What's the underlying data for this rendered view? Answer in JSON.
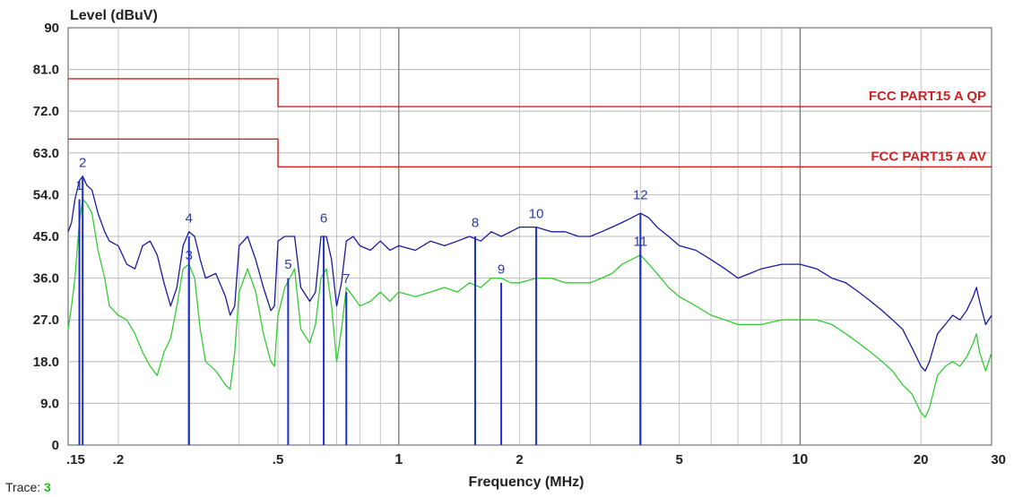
{
  "chart_data": {
    "type": "line",
    "title": "",
    "ylabel": "Level (dBuV)",
    "xlabel": "Frequency (MHz)",
    "x_scale": "log",
    "xlim": [
      0.15,
      30
    ],
    "ylim": [
      0,
      90
    ],
    "grid": true,
    "y_ticks": [
      {
        "value": 0,
        "label": "0"
      },
      {
        "value": 9,
        "label": "9.0"
      },
      {
        "value": 18,
        "label": "18.0"
      },
      {
        "value": 27,
        "label": "27.0"
      },
      {
        "value": 36,
        "label": "36.0"
      },
      {
        "value": 45,
        "label": "45.0"
      },
      {
        "value": 54,
        "label": "54.0"
      },
      {
        "value": 63,
        "label": "63.0"
      },
      {
        "value": 72,
        "label": "72.0"
      },
      {
        "value": 81,
        "label": "81.0"
      },
      {
        "value": 90,
        "label": "90"
      }
    ],
    "x_ticks": [
      {
        "value": 0.15,
        "label": ".15",
        "major": false
      },
      {
        "value": 0.2,
        "label": ".2",
        "major": false
      },
      {
        "value": 0.5,
        "label": ".5",
        "major": false
      },
      {
        "value": 1,
        "label": "1",
        "major": true
      },
      {
        "value": 2,
        "label": "2",
        "major": false
      },
      {
        "value": 5,
        "label": "5",
        "major": false
      },
      {
        "value": 10,
        "label": "10",
        "major": true
      },
      {
        "value": 20,
        "label": "20",
        "major": false
      },
      {
        "value": 30,
        "label": "30",
        "major": false
      }
    ],
    "limits": [
      {
        "name": "FCC PART15 A QP",
        "color": "#cc2222",
        "segments": [
          [
            0.15,
            79
          ],
          [
            0.5,
            79
          ],
          [
            0.5,
            73
          ],
          [
            30,
            73
          ]
        ]
      },
      {
        "name": "FCC PART15 A AV",
        "color": "#cc2222",
        "segments": [
          [
            0.15,
            66
          ],
          [
            0.5,
            66
          ],
          [
            0.5,
            60
          ],
          [
            30,
            60
          ]
        ]
      }
    ],
    "series": [
      {
        "color": "#1a1a9e",
        "points": [
          [
            0.15,
            46
          ],
          [
            0.153,
            48
          ],
          [
            0.156,
            53
          ],
          [
            0.16,
            57
          ],
          [
            0.163,
            58
          ],
          [
            0.167,
            56
          ],
          [
            0.172,
            55
          ],
          [
            0.178,
            50
          ],
          [
            0.185,
            46
          ],
          [
            0.19,
            44
          ],
          [
            0.2,
            43
          ],
          [
            0.21,
            39
          ],
          [
            0.22,
            38
          ],
          [
            0.23,
            43
          ],
          [
            0.24,
            44
          ],
          [
            0.25,
            41
          ],
          [
            0.26,
            35
          ],
          [
            0.27,
            30
          ],
          [
            0.28,
            34
          ],
          [
            0.29,
            43
          ],
          [
            0.3,
            46
          ],
          [
            0.31,
            45
          ],
          [
            0.32,
            40
          ],
          [
            0.33,
            36
          ],
          [
            0.35,
            37
          ],
          [
            0.37,
            32
          ],
          [
            0.38,
            28
          ],
          [
            0.39,
            30
          ],
          [
            0.4,
            43
          ],
          [
            0.42,
            45
          ],
          [
            0.44,
            40
          ],
          [
            0.46,
            34
          ],
          [
            0.48,
            29
          ],
          [
            0.49,
            30
          ],
          [
            0.5,
            44
          ],
          [
            0.52,
            45
          ],
          [
            0.55,
            45
          ],
          [
            0.57,
            34
          ],
          [
            0.6,
            31
          ],
          [
            0.62,
            33
          ],
          [
            0.64,
            45
          ],
          [
            0.66,
            45
          ],
          [
            0.68,
            40
          ],
          [
            0.7,
            30
          ],
          [
            0.72,
            35
          ],
          [
            0.74,
            44
          ],
          [
            0.77,
            45
          ],
          [
            0.8,
            43
          ],
          [
            0.85,
            42
          ],
          [
            0.9,
            44
          ],
          [
            0.95,
            42
          ],
          [
            1.0,
            43
          ],
          [
            1.1,
            42
          ],
          [
            1.2,
            44
          ],
          [
            1.3,
            43
          ],
          [
            1.4,
            44
          ],
          [
            1.5,
            45
          ],
          [
            1.6,
            44
          ],
          [
            1.7,
            46
          ],
          [
            1.8,
            45
          ],
          [
            1.9,
            46
          ],
          [
            2.0,
            47
          ],
          [
            2.2,
            47
          ],
          [
            2.4,
            46
          ],
          [
            2.6,
            46
          ],
          [
            2.8,
            45
          ],
          [
            3.0,
            45
          ],
          [
            3.2,
            46
          ],
          [
            3.4,
            47
          ],
          [
            3.6,
            48
          ],
          [
            3.8,
            49
          ],
          [
            4.0,
            50
          ],
          [
            4.2,
            49
          ],
          [
            4.4,
            47
          ],
          [
            4.7,
            45
          ],
          [
            5.0,
            43
          ],
          [
            5.5,
            42
          ],
          [
            6.0,
            40
          ],
          [
            6.5,
            38
          ],
          [
            7.0,
            36
          ],
          [
            7.5,
            37
          ],
          [
            8.0,
            38
          ],
          [
            9.0,
            39
          ],
          [
            10.0,
            39
          ],
          [
            11.0,
            38
          ],
          [
            12.0,
            36
          ],
          [
            13.0,
            35
          ],
          [
            14.0,
            33
          ],
          [
            15.0,
            31
          ],
          [
            16.0,
            29
          ],
          [
            17.0,
            27
          ],
          [
            18.0,
            25
          ],
          [
            19.0,
            21
          ],
          [
            20.0,
            17
          ],
          [
            20.5,
            16
          ],
          [
            21.0,
            18
          ],
          [
            22.0,
            24
          ],
          [
            23.0,
            26
          ],
          [
            24.0,
            28
          ],
          [
            25.0,
            27
          ],
          [
            26.0,
            29
          ],
          [
            27.0,
            32
          ],
          [
            27.5,
            34
          ],
          [
            28.0,
            31
          ],
          [
            29.0,
            26
          ],
          [
            30.0,
            28
          ]
        ]
      },
      {
        "color": "#33cc33",
        "points": [
          [
            0.15,
            25
          ],
          [
            0.153,
            30
          ],
          [
            0.156,
            36
          ],
          [
            0.16,
            48
          ],
          [
            0.163,
            53
          ],
          [
            0.167,
            52
          ],
          [
            0.172,
            50
          ],
          [
            0.178,
            42
          ],
          [
            0.185,
            36
          ],
          [
            0.19,
            30
          ],
          [
            0.2,
            28
          ],
          [
            0.21,
            27
          ],
          [
            0.22,
            24
          ],
          [
            0.23,
            20
          ],
          [
            0.24,
            17
          ],
          [
            0.25,
            15
          ],
          [
            0.26,
            20
          ],
          [
            0.27,
            23
          ],
          [
            0.28,
            30
          ],
          [
            0.29,
            38
          ],
          [
            0.3,
            39
          ],
          [
            0.31,
            36
          ],
          [
            0.32,
            25
          ],
          [
            0.33,
            18
          ],
          [
            0.35,
            16
          ],
          [
            0.37,
            13
          ],
          [
            0.38,
            12
          ],
          [
            0.39,
            20
          ],
          [
            0.4,
            33
          ],
          [
            0.42,
            38
          ],
          [
            0.44,
            33
          ],
          [
            0.46,
            24
          ],
          [
            0.48,
            18
          ],
          [
            0.49,
            17
          ],
          [
            0.5,
            28
          ],
          [
            0.52,
            34
          ],
          [
            0.55,
            38
          ],
          [
            0.57,
            25
          ],
          [
            0.6,
            22
          ],
          [
            0.62,
            26
          ],
          [
            0.64,
            36
          ],
          [
            0.66,
            38
          ],
          [
            0.68,
            30
          ],
          [
            0.7,
            18
          ],
          [
            0.72,
            25
          ],
          [
            0.74,
            34
          ],
          [
            0.77,
            32
          ],
          [
            0.8,
            30
          ],
          [
            0.85,
            31
          ],
          [
            0.9,
            33
          ],
          [
            0.95,
            31
          ],
          [
            1.0,
            33
          ],
          [
            1.1,
            32
          ],
          [
            1.2,
            33
          ],
          [
            1.3,
            34
          ],
          [
            1.4,
            33
          ],
          [
            1.5,
            35
          ],
          [
            1.6,
            34
          ],
          [
            1.7,
            36
          ],
          [
            1.8,
            36
          ],
          [
            1.9,
            35
          ],
          [
            2.0,
            35
          ],
          [
            2.2,
            36
          ],
          [
            2.4,
            36
          ],
          [
            2.6,
            35
          ],
          [
            2.8,
            35
          ],
          [
            3.0,
            35
          ],
          [
            3.2,
            36
          ],
          [
            3.4,
            37
          ],
          [
            3.6,
            39
          ],
          [
            3.8,
            40
          ],
          [
            4.0,
            41
          ],
          [
            4.2,
            39
          ],
          [
            4.4,
            37
          ],
          [
            4.7,
            34
          ],
          [
            5.0,
            32
          ],
          [
            5.5,
            30
          ],
          [
            6.0,
            28
          ],
          [
            6.5,
            27
          ],
          [
            7.0,
            26
          ],
          [
            7.5,
            26
          ],
          [
            8.0,
            26
          ],
          [
            9.0,
            27
          ],
          [
            10.0,
            27
          ],
          [
            11.0,
            27
          ],
          [
            12.0,
            26
          ],
          [
            13.0,
            24
          ],
          [
            14.0,
            22
          ],
          [
            15.0,
            20
          ],
          [
            16.0,
            18
          ],
          [
            17.0,
            16
          ],
          [
            18.0,
            13
          ],
          [
            19.0,
            11
          ],
          [
            20.0,
            7
          ],
          [
            20.5,
            6
          ],
          [
            21.0,
            8
          ],
          [
            22.0,
            15
          ],
          [
            23.0,
            17
          ],
          [
            24.0,
            18
          ],
          [
            25.0,
            17
          ],
          [
            26.0,
            19
          ],
          [
            27.0,
            22
          ],
          [
            27.5,
            24
          ],
          [
            28.0,
            20
          ],
          [
            29.0,
            16
          ],
          [
            30.0,
            20
          ]
        ]
      }
    ],
    "markers": [
      {
        "label": "1",
        "freq": 0.16,
        "level": 53,
        "label_level": 55
      },
      {
        "label": "2",
        "freq": 0.163,
        "level": 58,
        "label_level": 60
      },
      {
        "label": "3",
        "freq": 0.3,
        "level": 38,
        "label_level": 40
      },
      {
        "label": "4",
        "freq": 0.3,
        "level": 45,
        "label_level": 48
      },
      {
        "label": "5",
        "freq": 0.53,
        "level": 36,
        "label_level": 38
      },
      {
        "label": "6",
        "freq": 0.65,
        "level": 45,
        "label_level": 48
      },
      {
        "label": "7",
        "freq": 0.74,
        "level": 33,
        "label_level": 35
      },
      {
        "label": "8",
        "freq": 1.55,
        "level": 45,
        "label_level": 47
      },
      {
        "label": "9",
        "freq": 1.8,
        "level": 35,
        "label_level": 37
      },
      {
        "label": "10",
        "freq": 2.2,
        "level": 47,
        "label_level": 49
      },
      {
        "label": "11",
        "freq": 4.0,
        "level": 41,
        "label_level": 43
      },
      {
        "label": "12",
        "freq": 4.0,
        "level": 50,
        "label_level": 53
      }
    ]
  },
  "footer": {
    "trace_label": "Trace:",
    "trace_value": "3"
  }
}
